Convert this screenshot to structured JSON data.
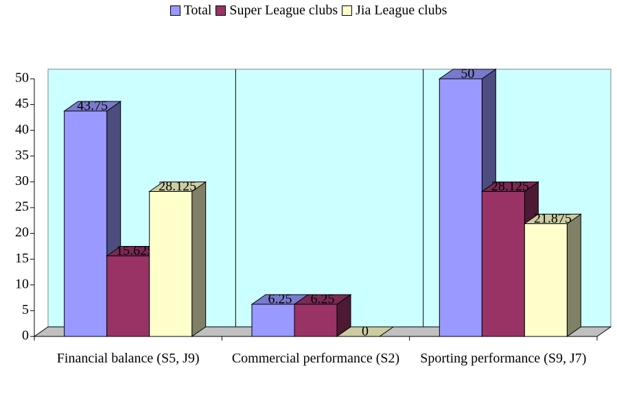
{
  "chart_data": {
    "type": "bar3d",
    "categories": [
      "Financial balance (S5, J9)",
      "Commercial performance (S2)",
      "Sporting performance (S9, J7)"
    ],
    "series": [
      {
        "name": "Total",
        "color": "#9999ff",
        "values": [
          43.75,
          6.25,
          50
        ]
      },
      {
        "name": "Super League clubs",
        "color": "#993366",
        "values": [
          15.625,
          6.25,
          28.125
        ]
      },
      {
        "name": "Jia League clubs",
        "color": "#ffffcc",
        "values": [
          28.125,
          0,
          21.875
        ]
      }
    ],
    "ylim": [
      0,
      50
    ],
    "yticks": [
      0,
      5,
      10,
      15,
      20,
      25,
      30,
      35,
      40,
      45,
      50
    ],
    "grid": false,
    "legend": "top"
  }
}
